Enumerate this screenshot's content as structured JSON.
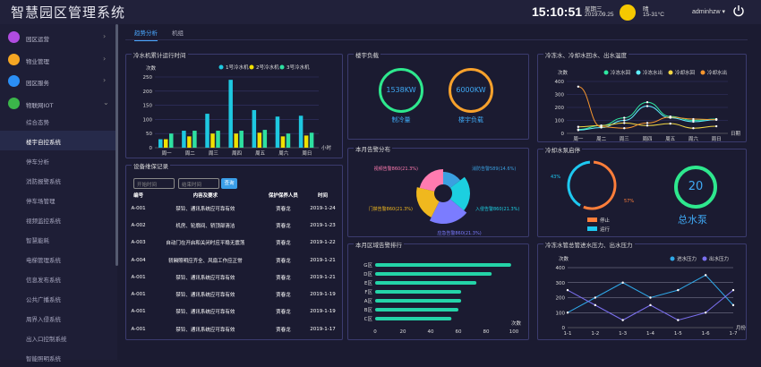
{
  "header": {
    "title": "智慧园区管理系统",
    "time": "15:10:51",
    "weekday": "星期三",
    "date": "2019.09.25",
    "weather": "晴",
    "temperature": "15-31°C",
    "user": "adminhzw ▾"
  },
  "sidebar": {
    "menus": [
      {
        "label": "园区运营",
        "icon": "building-icon",
        "color": "#b04ce0",
        "chevron": "›"
      },
      {
        "label": "物业管理",
        "icon": "bulb-icon",
        "color": "#f5a623",
        "chevron": "›"
      },
      {
        "label": "园区服务",
        "icon": "lock-icon",
        "color": "#2b8ff5",
        "chevron": "›"
      },
      {
        "label": "物联网IOT",
        "icon": "shield-icon",
        "color": "#3bb54a",
        "chevron": "⌄"
      }
    ],
    "subitems": [
      "综合态势",
      "楼宇自控系统",
      "停车分析",
      "消防报警系统",
      "停车场管理",
      "视频监控系统",
      "智慧能耗",
      "电梯管理系统",
      "信息发布系统",
      "公共广播系统",
      "周界入侵系统",
      "出入口控制系统",
      "智能照明系统"
    ],
    "active_index": 1
  },
  "tabs": [
    "趋势分析",
    "机组"
  ],
  "panels": {
    "chiller": {
      "title": "冷水机累计运行时间"
    },
    "records": {
      "title": "设备维保记录",
      "start_placeholder": "开始时间",
      "end_placeholder": "结束时间",
      "query": "查询",
      "columns": [
        "编号",
        "内容及要求",
        "保护保养人员",
        "时间"
      ],
      "rows": [
        [
          "A-001",
          "禁铃、通讯系统应可靠有效",
          "贾春龙",
          "2019-1-24"
        ],
        [
          "A-002",
          "机房、轮廓间、轿顶部清洁",
          "贾春龙",
          "2019-1-23"
        ],
        [
          "A-003",
          "自动门在开启和关闭时应平稳无震荡",
          "贾春龙",
          "2019-1-22"
        ],
        [
          "A-004",
          "轿厢照明应齐全、风扇工作应正常",
          "贾春龙",
          "2019-1-21"
        ],
        [
          "A-001",
          "禁铃、通讯系统应可靠有效",
          "贾春龙",
          "2019-1-21"
        ],
        [
          "A-001",
          "禁铃、通讯系统应可靠有效",
          "贾春龙",
          "2019-1-19"
        ],
        [
          "A-001",
          "禁铃、通讯系统应可靠有效",
          "贾春龙",
          "2019-1-19"
        ],
        [
          "A-001",
          "禁铃、通讯系统应可靠有效",
          "贾春龙",
          "2019-1-17"
        ]
      ]
    },
    "load": {
      "title": "楼宇负载",
      "items": [
        {
          "value": "1538KW",
          "label": "制冷量",
          "color": "#2ee88e"
        },
        {
          "value": "6000KW",
          "label": "楼宇负载",
          "color": "#f7a12c"
        }
      ]
    },
    "alarms": {
      "title": "本月告警分布"
    },
    "regions": {
      "title": "本月区域告警排行"
    },
    "temps": {
      "title": "冷冻水、冷却水回水、出水温度"
    },
    "pump": {
      "title": "冷却水泵启停",
      "total": "20",
      "total_label": "总水泵"
    },
    "pressure": {
      "title": "冷冻水管总管进水压力、出水压力"
    }
  },
  "chart_data": [
    {
      "id": "chiller",
      "type": "bar",
      "ylabel": "次数",
      "xlabel": "小时",
      "ylim": [
        0,
        250
      ],
      "yticks": [
        0,
        50,
        100,
        150,
        200,
        250
      ],
      "categories": [
        "周一",
        "周二",
        "周三",
        "周四",
        "周五",
        "周六",
        "周日"
      ],
      "series": [
        {
          "name": "1号冷水机",
          "color": "#1ec8e0",
          "values": [
            30,
            60,
            120,
            240,
            133,
            110,
            113
          ]
        },
        {
          "name": "2号冷水机",
          "color": "#f0e000",
          "values": [
            30,
            40,
            50,
            50,
            53,
            40,
            43
          ]
        },
        {
          "name": "3号冷水机",
          "color": "#2ee0a0",
          "values": [
            50,
            60,
            60,
            60,
            63,
            50,
            53
          ]
        }
      ],
      "legend": "top-right",
      "grid": true
    },
    {
      "id": "alarms",
      "type": "pie",
      "variant": "rose-donut",
      "slices": [
        {
          "label": "消防告警589(14.6%)",
          "value": 589,
          "color": "#3aa0e0"
        },
        {
          "label": "入侵告警860(21.3%)",
          "value": 860,
          "color": "#1ccfe0"
        },
        {
          "label": "应急告警860(21.3%)",
          "value": 860,
          "color": "#7b7cff"
        },
        {
          "label": "门禁告警860(21.3%)",
          "value": 860,
          "color": "#f0b81e"
        },
        {
          "label": "视频告警860(21.3%)",
          "value": 860,
          "color": "#ff7bb0"
        }
      ]
    },
    {
      "id": "regions",
      "type": "bar",
      "orientation": "horizontal",
      "xlabel": "次数",
      "xlim": [
        0,
        100
      ],
      "xticks": [
        0,
        20,
        40,
        60,
        80,
        100
      ],
      "categories": [
        "G区",
        "D区",
        "E区",
        "F区",
        "A区",
        "B区",
        "C区"
      ],
      "values": [
        98,
        84,
        73,
        62,
        62,
        60,
        55
      ],
      "color": "#24d4a8",
      "grid": false
    },
    {
      "id": "temps",
      "type": "line",
      "ylabel": "次数",
      "xlabel": "日期",
      "ylim": [
        0,
        400
      ],
      "yticks": [
        0,
        100,
        200,
        300,
        400
      ],
      "categories": [
        "周一",
        "周二",
        "周三",
        "周四",
        "周五",
        "周六",
        "周日"
      ],
      "smooth": true,
      "series": [
        {
          "name": "冷冻水回",
          "color": "#2ee8a0",
          "values": [
            30,
            60,
            120,
            240,
            130,
            100,
            110
          ]
        },
        {
          "name": "冷冻水出",
          "color": "#5ff0ff",
          "values": [
            25,
            45,
            100,
            210,
            120,
            90,
            105
          ]
        },
        {
          "name": "冷却水回",
          "color": "#f2d644",
          "values": [
            50,
            60,
            80,
            60,
            75,
            40,
            55
          ]
        },
        {
          "name": "冷却水出",
          "color": "#f7962e",
          "values": [
            360,
            50,
            40,
            80,
            125,
            110,
            105
          ]
        }
      ],
      "legend": "top-right",
      "grid": true
    },
    {
      "id": "pump",
      "type": "pie",
      "variant": "ring",
      "slices": [
        {
          "label": "停止",
          "value": 57,
          "text": "57%",
          "color": "#ff7e3a"
        },
        {
          "label": "运行",
          "value": 43,
          "text": "43%",
          "color": "#1ec8f0"
        }
      ],
      "legend": "bottom"
    },
    {
      "id": "pressure",
      "type": "line",
      "ylabel": "次数",
      "xlabel": "月份",
      "ylim": [
        0,
        400
      ],
      "yticks": [
        0,
        100,
        200,
        300,
        400
      ],
      "categories": [
        "1-1",
        "1-2",
        "1-3",
        "1-4",
        "1-5",
        "1-6",
        "1-7"
      ],
      "smooth": false,
      "series": [
        {
          "name": "进水压力",
          "color": "#2fa8e8",
          "values": [
            100,
            200,
            300,
            200,
            250,
            350,
            150
          ]
        },
        {
          "name": "出水压力",
          "color": "#7b70f0",
          "values": [
            250,
            150,
            50,
            150,
            50,
            100,
            250
          ]
        }
      ],
      "legend": "top-right",
      "grid": true
    }
  ]
}
